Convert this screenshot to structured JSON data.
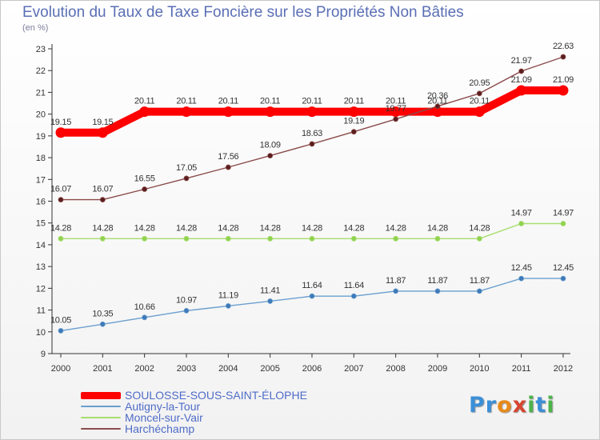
{
  "header": {
    "title": "Evolution du Taux de Taxe Foncière sur les Propriétés Non Bâties",
    "unit": "(en %)"
  },
  "logo": {
    "letters": [
      "P",
      "r",
      "o",
      "x",
      "i",
      "t",
      "i"
    ],
    "colors": [
      "#3a8fd8",
      "#3a8fd8",
      "#e88a1a",
      "#d64530",
      "#4cb34b",
      "#3a8fd8",
      "#4cb34b"
    ]
  },
  "chart_data": {
    "type": "line",
    "x": [
      "2000",
      "2001",
      "2002",
      "2003",
      "2004",
      "2005",
      "2006",
      "2007",
      "2008",
      "2009",
      "2010",
      "2011",
      "2012"
    ],
    "yticks": [
      "9",
      "10",
      "11",
      "12",
      "13",
      "14",
      "15",
      "16",
      "17",
      "18",
      "19",
      "20",
      "21",
      "22",
      "23"
    ],
    "ylim": [
      9,
      23
    ],
    "grid": false,
    "legend_position": "bottom-left",
    "series": [
      {
        "name": "SOULOSSE-SOUS-SAINT-ÉLOPHE",
        "color": "#ff0000",
        "values": [
          19.15,
          19.15,
          20.11,
          20.11,
          20.11,
          20.11,
          20.11,
          20.11,
          20.11,
          20.11,
          20.11,
          21.09,
          21.09
        ],
        "labels": [
          "19.15",
          "19.15",
          "20.11",
          "20.11",
          "20.11",
          "20.11",
          "20.11",
          "20.11",
          "20.11",
          "20.11",
          "20.11",
          "21.09",
          "21.09"
        ]
      },
      {
        "name": "Autigny-la-Tour",
        "color": "#6a9fcf",
        "values": [
          10.05,
          10.35,
          10.66,
          10.97,
          11.19,
          11.41,
          11.64,
          11.64,
          11.87,
          11.87,
          11.87,
          12.45,
          12.45
        ],
        "labels": [
          "10.05",
          "10.35",
          "10.66",
          "10.97",
          "11.19",
          "11.41",
          "11.64",
          "11.64",
          "11.87",
          "11.87",
          "11.87",
          "12.45",
          "12.45"
        ]
      },
      {
        "name": "Moncel-sur-Vair",
        "color": "#a7de6e",
        "values": [
          14.28,
          14.28,
          14.28,
          14.28,
          14.28,
          14.28,
          14.28,
          14.28,
          14.28,
          14.28,
          14.28,
          14.97,
          14.97
        ],
        "labels": [
          "14.28",
          "14.28",
          "14.28",
          "14.28",
          "14.28",
          "14.28",
          "14.28",
          "14.28",
          "14.28",
          "14.28",
          "14.28",
          "14.97",
          "14.97"
        ]
      },
      {
        "name": "Harchéchamp",
        "color": "#8b4a4a",
        "values": [
          16.07,
          16.07,
          16.55,
          17.05,
          17.56,
          18.09,
          18.63,
          19.19,
          19.77,
          20.36,
          20.95,
          21.97,
          22.63
        ],
        "labels": [
          "16.07",
          "16.07",
          "16.55",
          "17.05",
          "17.56",
          "18.09",
          "18.63",
          "19.19",
          "19.77",
          "20.36",
          "20.95",
          "21.97",
          "22.63"
        ]
      }
    ]
  }
}
